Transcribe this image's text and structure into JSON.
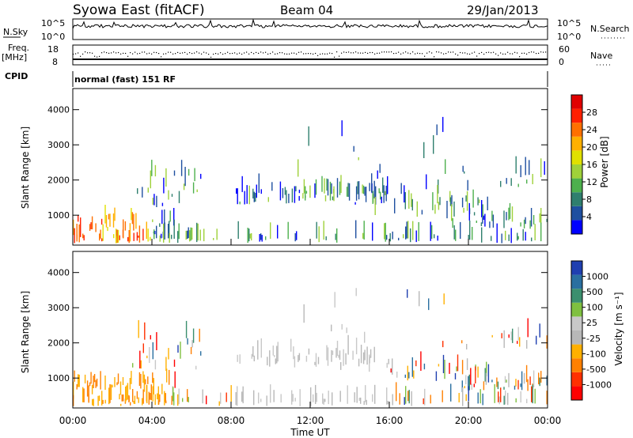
{
  "header": {
    "title": "Syowa East (fitACF)",
    "beam": "Beam 04",
    "date": "29/Jan/2013"
  },
  "top_panels": {
    "nsky_label": "N.Sky",
    "nsky_ticks": [
      "10^5",
      "10^0"
    ],
    "nsearch_label": "N.Search",
    "nsearch_ticks": [
      "10^5",
      "10^0"
    ],
    "freq_label": "Freq.",
    "freq_unit": "[MHz]",
    "freq_ticks": [
      "18",
      "8"
    ],
    "nave_label": "Nave",
    "nave_ticks": [
      "60",
      "0"
    ],
    "cpid_label": "CPID",
    "cpid_text": "normal (fast) 151 RF"
  },
  "colors": {
    "power_scale": [
      "#0000ff",
      "#1e4fa0",
      "#2f7f6e",
      "#4db04d",
      "#9fd13a",
      "#e0e000",
      "#ffb000",
      "#ff7000",
      "#ff2000",
      "#e00000"
    ],
    "velocity_scale": [
      "#1f3fb0",
      "#2a6fa0",
      "#3b8f6e",
      "#7fc040",
      "#c8c8c8",
      "#b8b8b8",
      "#ffb000",
      "#ff8000",
      "#ff3000",
      "#ff0000"
    ]
  },
  "chart_data": [
    {
      "type": "heatmap",
      "name": "power",
      "ylabel": "Slant Range [km]",
      "y_ticks": [
        "1000",
        "2000",
        "3000",
        "4000"
      ],
      "ylim": [
        150,
        4600
      ],
      "colorbar_label": "Power [dB]",
      "colorbar_ticks": [
        "4",
        "8",
        "12",
        "16",
        "20",
        "24",
        "28"
      ],
      "clim": [
        0,
        30
      ]
    },
    {
      "type": "heatmap",
      "name": "velocity",
      "ylabel": "Slant Range [km]",
      "y_ticks": [
        "1000",
        "2000",
        "3000",
        "4000"
      ],
      "ylim": [
        150,
        4600
      ],
      "colorbar_label": "Velocity [m s⁻¹]",
      "colorbar_ticks": [
        "1000",
        "500",
        "100",
        "25",
        "-25",
        "-100",
        "-500",
        "-1000"
      ],
      "clim": [
        -1000,
        1000
      ]
    }
  ],
  "x_axis": {
    "label": "Time UT",
    "ticks": [
      "00:00",
      "04:00",
      "08:00",
      "12:00",
      "16:00",
      "20:00",
      "00:00"
    ],
    "xlim_hours": [
      0,
      24
    ]
  }
}
